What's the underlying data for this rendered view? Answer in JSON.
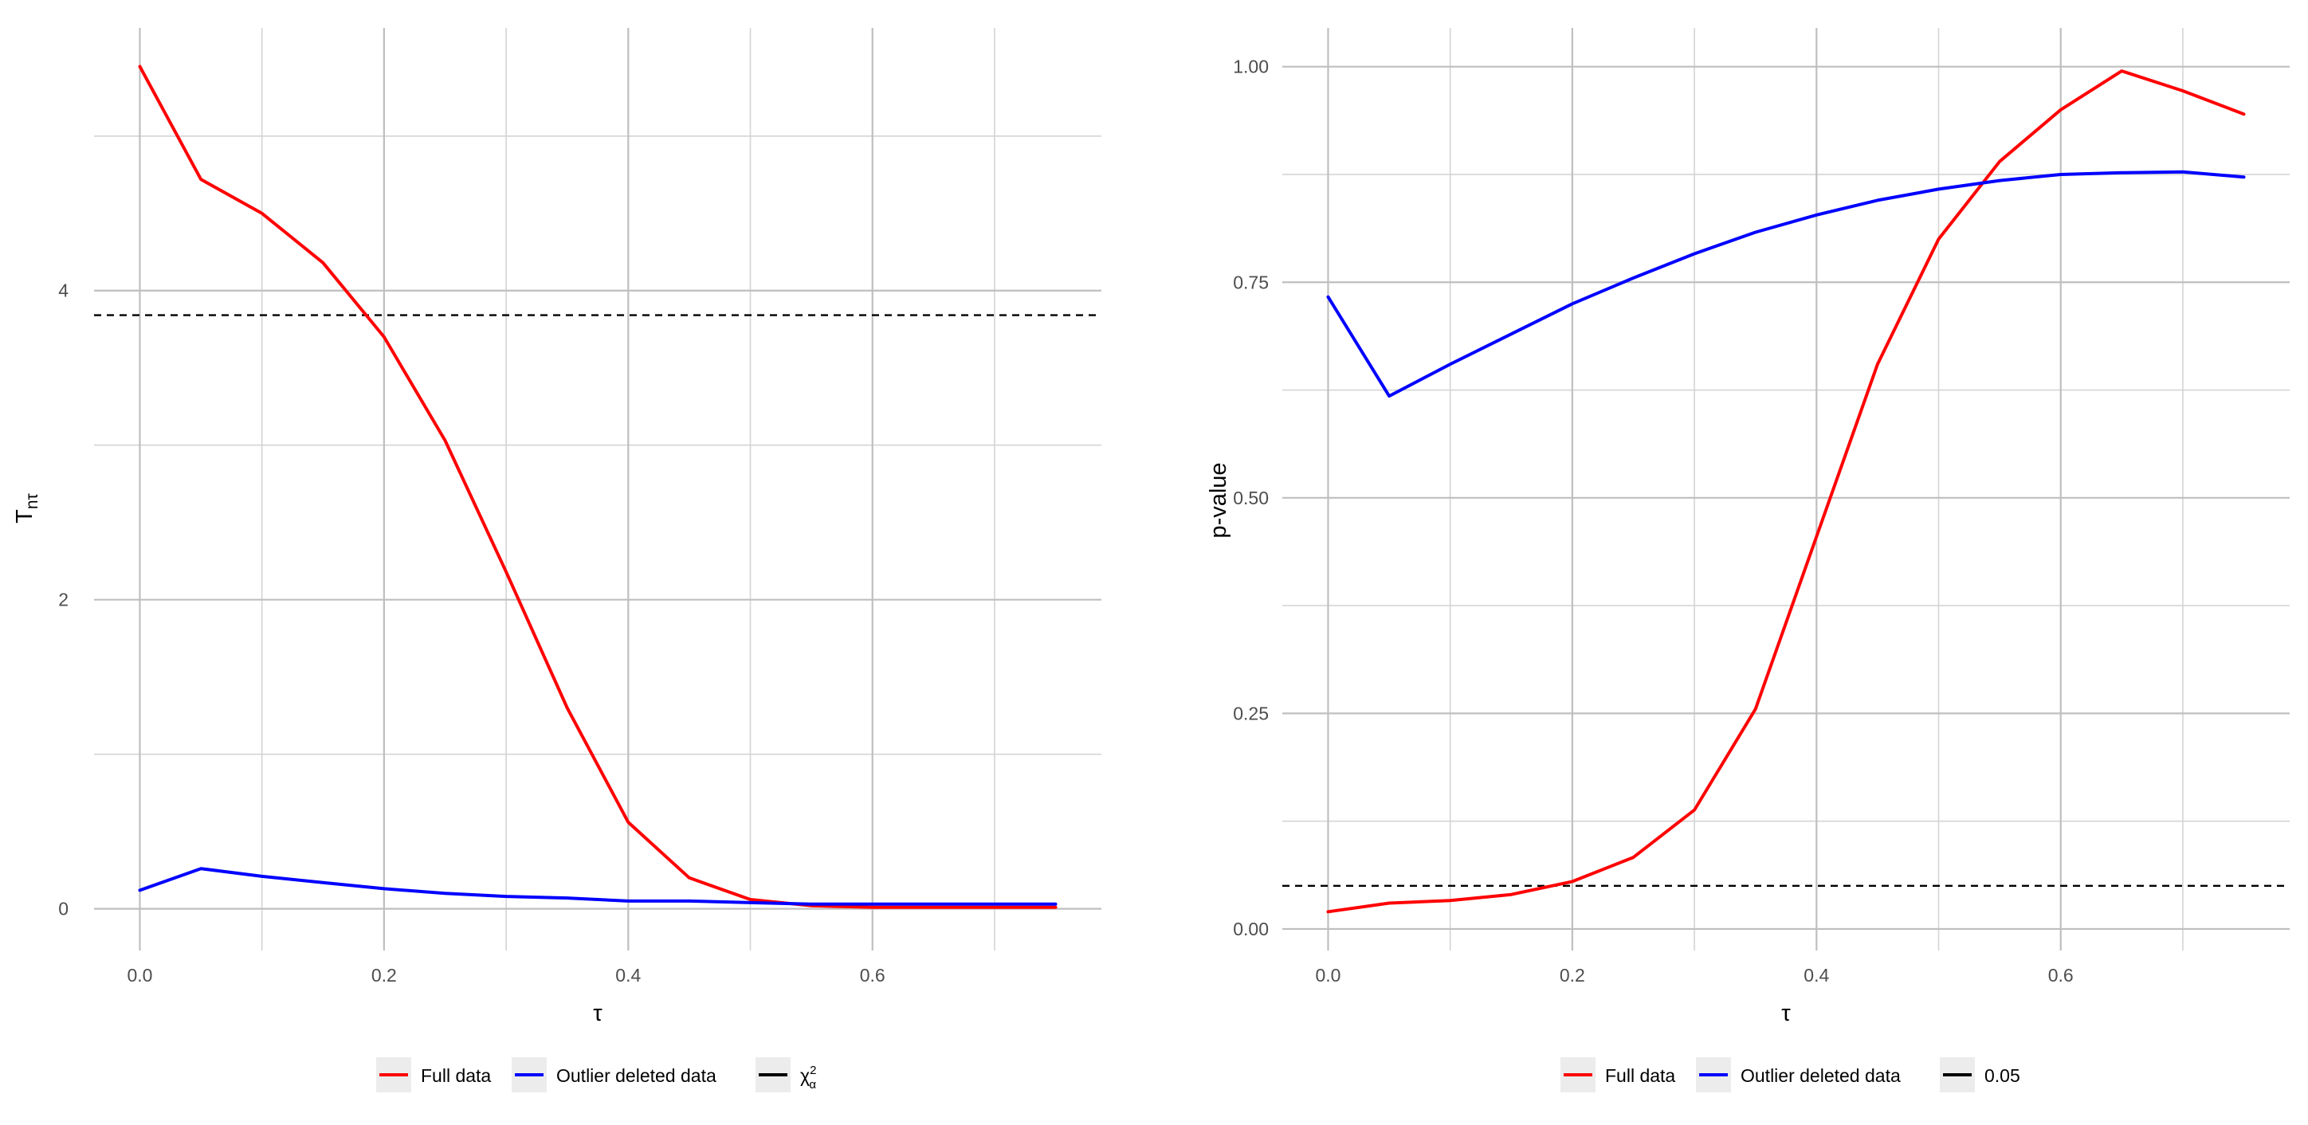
{
  "chart_data": [
    {
      "type": "line",
      "title": "",
      "xlabel": "τ",
      "ylabel_main": "T",
      "ylabel_sub": "nτ",
      "xlim": [
        -0.0375,
        0.7875
      ],
      "ylim": [
        -0.27,
        5.7
      ],
      "x_ticks": [
        0.0,
        0.2,
        0.4,
        0.6
      ],
      "x_tick_labels": [
        "0.0",
        "0.2",
        "0.4",
        "0.6"
      ],
      "y_ticks": [
        0,
        2,
        4
      ],
      "y_tick_labels": [
        "0",
        "2",
        "4"
      ],
      "grid": true,
      "legend_position": "bottom",
      "reference_line": {
        "y": 3.841,
        "style": "dashed",
        "color": "#000000"
      },
      "series": [
        {
          "name": "Full data",
          "color": "#ff0000",
          "x": [
            0.0,
            0.05,
            0.1,
            0.15,
            0.2,
            0.25,
            0.3,
            0.35,
            0.4,
            0.45,
            0.5,
            0.55,
            0.6,
            0.65,
            0.7,
            0.75
          ],
          "y": [
            5.45,
            4.72,
            4.5,
            4.18,
            3.7,
            3.03,
            2.18,
            1.3,
            0.56,
            0.2,
            0.06,
            0.02,
            0.01,
            0.01,
            0.01,
            0.01
          ]
        },
        {
          "name": "Outlier deleted data",
          "color": "#0000ff",
          "x": [
            0.0,
            0.05,
            0.1,
            0.15,
            0.2,
            0.25,
            0.3,
            0.35,
            0.4,
            0.45,
            0.5,
            0.55,
            0.6,
            0.65,
            0.7,
            0.75
          ],
          "y": [
            0.12,
            0.26,
            0.21,
            0.17,
            0.13,
            0.1,
            0.08,
            0.07,
            0.05,
            0.05,
            0.04,
            0.03,
            0.03,
            0.03,
            0.03,
            0.03
          ]
        }
      ],
      "legend": [
        {
          "label": "Full data",
          "color": "#ff0000",
          "style": "solid"
        },
        {
          "label": "Outlier deleted data",
          "color": "#0000ff",
          "style": "solid"
        },
        {
          "label": "χ",
          "sup": "2",
          "sub": "α",
          "color": "#000000",
          "style": "solid"
        }
      ]
    },
    {
      "type": "line",
      "title": "",
      "xlabel": "τ",
      "ylabel": "p-value",
      "xlim": [
        -0.0375,
        0.7875
      ],
      "ylim": [
        -0.025,
        1.045
      ],
      "x_ticks": [
        0.0,
        0.2,
        0.4,
        0.6
      ],
      "x_tick_labels": [
        "0.0",
        "0.2",
        "0.4",
        "0.6"
      ],
      "y_ticks": [
        0.0,
        0.25,
        0.5,
        0.75,
        1.0
      ],
      "y_tick_labels": [
        "0.00",
        "0.25",
        "0.50",
        "0.75",
        "1.00"
      ],
      "grid": true,
      "legend_position": "bottom",
      "reference_line": {
        "y": 0.05,
        "style": "dashed",
        "color": "#000000"
      },
      "series": [
        {
          "name": "Full data",
          "color": "#ff0000",
          "x": [
            0.0,
            0.05,
            0.1,
            0.15,
            0.2,
            0.25,
            0.3,
            0.35,
            0.4,
            0.45,
            0.5,
            0.55,
            0.6,
            0.65,
            0.7,
            0.75
          ],
          "y": [
            0.02,
            0.03,
            0.033,
            0.04,
            0.055,
            0.083,
            0.138,
            0.255,
            0.455,
            0.655,
            0.8,
            0.89,
            0.95,
            0.995,
            0.972,
            0.945
          ]
        },
        {
          "name": "Outlier deleted data",
          "color": "#0000ff",
          "x": [
            0.0,
            0.05,
            0.1,
            0.15,
            0.2,
            0.25,
            0.3,
            0.35,
            0.4,
            0.45,
            0.5,
            0.55,
            0.6,
            0.65,
            0.7,
            0.75
          ],
          "y": [
            0.733,
            0.618,
            0.655,
            0.69,
            0.725,
            0.755,
            0.783,
            0.808,
            0.828,
            0.845,
            0.858,
            0.868,
            0.875,
            0.877,
            0.878,
            0.872
          ]
        }
      ],
      "legend": [
        {
          "label": "Full data",
          "color": "#ff0000",
          "style": "solid"
        },
        {
          "label": "Outlier deleted data",
          "color": "#0000ff",
          "style": "solid"
        },
        {
          "label": "0.05",
          "color": "#000000",
          "style": "solid"
        }
      ]
    }
  ]
}
